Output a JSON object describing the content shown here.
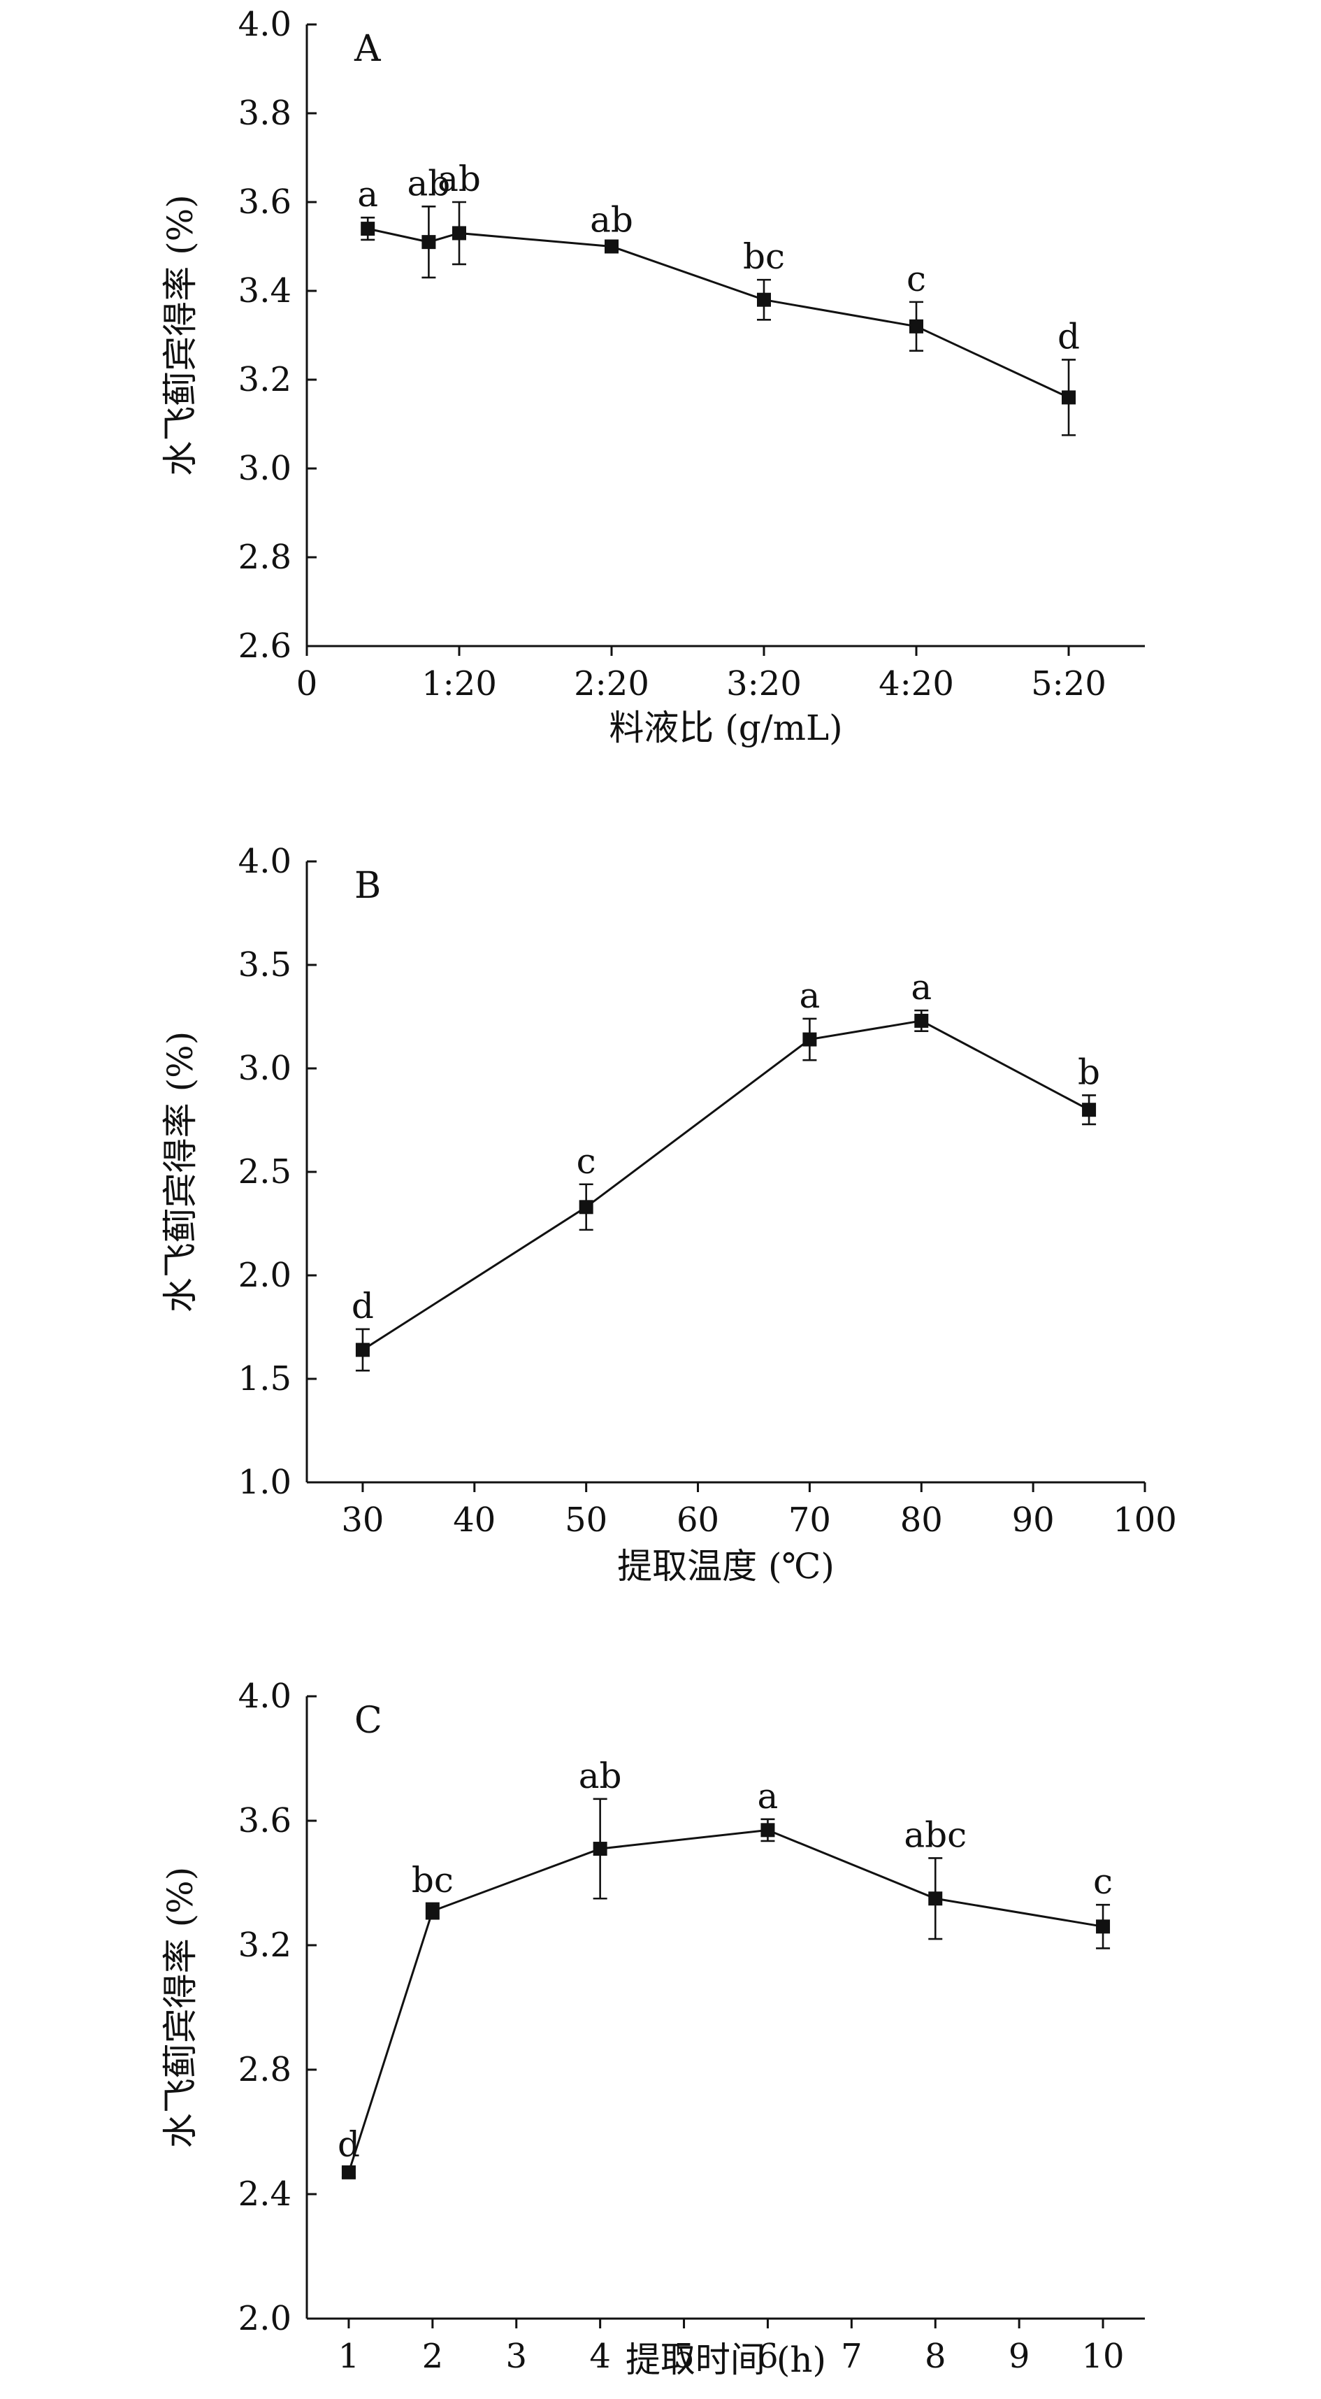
{
  "chart_data": [
    {
      "type": "line",
      "panel_label": "A",
      "xlabel": "料液比 (g/mL)",
      "ylabel": "水飞蓟宾得率 (%)",
      "x_scale": "linear",
      "xlim": [
        0,
        5.5
      ],
      "ylim": [
        2.6,
        4.0
      ],
      "x_ticks": [
        0,
        1,
        2,
        3,
        4,
        5
      ],
      "x_tick_labels": [
        "0",
        "1:20",
        "2:20",
        "3:20",
        "4:20",
        "5:20"
      ],
      "y_ticks": [
        2.6,
        2.8,
        3.0,
        3.2,
        3.4,
        3.6,
        3.8,
        4.0
      ],
      "y_tick_labels": [
        "2.6",
        "2.8",
        "3.0",
        "3.2",
        "3.4",
        "3.6",
        "3.8",
        "4.0"
      ],
      "series": [
        {
          "x": [
            0.4,
            0.8,
            1.0,
            2.0,
            3.0,
            4.0,
            5.0
          ],
          "y": [
            3.54,
            3.51,
            3.53,
            3.5,
            3.38,
            3.32,
            3.16
          ],
          "err": [
            0.025,
            0.08,
            0.07,
            0.008,
            0.045,
            0.055,
            0.085
          ],
          "labels": [
            "a",
            "ab",
            "ab",
            "ab",
            "bc",
            "c",
            "d"
          ]
        }
      ]
    },
    {
      "type": "line",
      "panel_label": "B",
      "xlabel": "提取温度 (℃)",
      "ylabel": "水飞蓟宾得率 (%)",
      "x_scale": "linear",
      "xlim": [
        25,
        100
      ],
      "ylim": [
        1.0,
        4.0
      ],
      "x_ticks": [
        30,
        40,
        50,
        60,
        70,
        80,
        90,
        100
      ],
      "x_tick_labels": [
        "30",
        "40",
        "50",
        "60",
        "70",
        "80",
        "90",
        "100"
      ],
      "y_ticks": [
        1.0,
        1.5,
        2.0,
        2.5,
        3.0,
        3.5,
        4.0
      ],
      "y_tick_labels": [
        "1.0",
        "1.5",
        "2.0",
        "2.5",
        "3.0",
        "3.5",
        "4.0"
      ],
      "series": [
        {
          "x": [
            30,
            50,
            70,
            80,
            95
          ],
          "y": [
            1.64,
            2.33,
            3.14,
            3.23,
            2.8
          ],
          "err": [
            0.1,
            0.11,
            0.1,
            0.05,
            0.07
          ],
          "labels": [
            "d",
            "c",
            "a",
            "a",
            "b"
          ]
        }
      ]
    },
    {
      "type": "line",
      "panel_label": "C",
      "xlabel": "提取时间 (h)",
      "ylabel": "水飞蓟宾得率 (%)",
      "x_scale": "linear",
      "xlim": [
        0.5,
        10.5
      ],
      "ylim": [
        2.0,
        4.0
      ],
      "x_ticks": [
        1,
        2,
        3,
        4,
        5,
        6,
        7,
        8,
        9,
        10
      ],
      "x_tick_labels": [
        "1",
        "2",
        "3",
        "4",
        "5",
        "6",
        "7",
        "8",
        "9",
        "10"
      ],
      "y_ticks": [
        2.0,
        2.4,
        2.8,
        3.2,
        3.6,
        4.0
      ],
      "y_tick_labels": [
        "2.0",
        "2.4",
        "2.8",
        "3.2",
        "3.6",
        "4.0"
      ],
      "series": [
        {
          "x": [
            1,
            2,
            4,
            6,
            8,
            10
          ],
          "y": [
            2.47,
            3.31,
            3.51,
            3.57,
            3.35,
            3.26
          ],
          "err": [
            0.015,
            0.025,
            0.16,
            0.035,
            0.13,
            0.07
          ],
          "labels": [
            "d",
            "bc",
            "ab",
            "a",
            "abc",
            "c"
          ]
        }
      ]
    }
  ]
}
